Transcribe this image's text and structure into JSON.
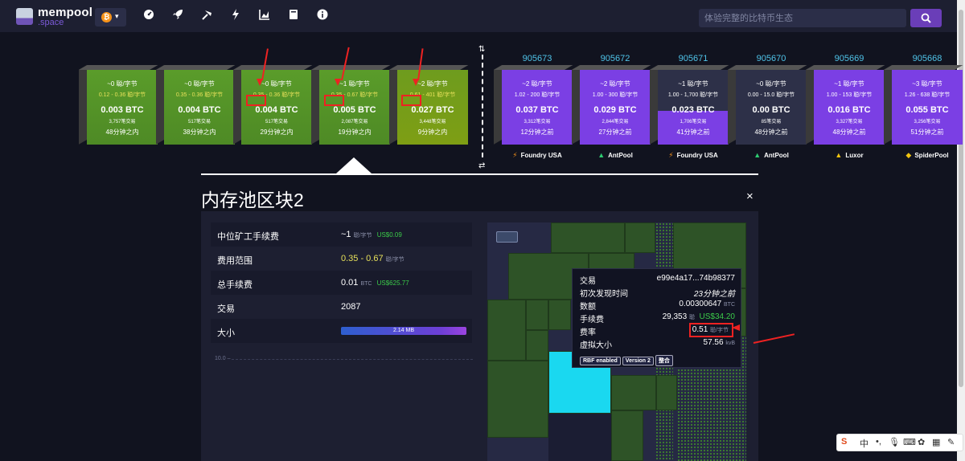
{
  "header": {
    "logo_line1": "mempool",
    "logo_line2": ".space",
    "network_coin": "₿",
    "search_placeholder": "体验完整的比特币生态"
  },
  "nav_icons": [
    "dashboard-icon",
    "rocket-icon",
    "mining-icon",
    "lightning-icon",
    "graphs-icon",
    "docs-icon",
    "about-icon"
  ],
  "mempool_blocks": [
    {
      "fee": "~0 聪/字节",
      "range": "0.12 - 0.36 聪/字节",
      "btc": "0.003 BTC",
      "tx": "3,757笔交易",
      "time": "48分钟之内"
    },
    {
      "fee": "~0 聪/字节",
      "range": "0.35 - 0.36 聪/字节",
      "btc": "0.004 BTC",
      "tx": "517笔交易",
      "time": "38分钟之内"
    },
    {
      "fee": "~0 聪/字节",
      "range": "0.35 - 0.36 聪/字节",
      "btc": "0.004 BTC",
      "tx": "517笔交易",
      "time": "29分钟之内"
    },
    {
      "fee": "~1 聪/字节",
      "range": "0.35 - 0.67 聪/字节",
      "btc": "0.005 BTC",
      "tx": "2,087笔交易",
      "time": "19分钟之内"
    },
    {
      "fee": "~2 聪/字节",
      "range": "0.61 - 401 聪/字节",
      "btc": "0.027 BTC",
      "tx": "3,448笔交易",
      "time": "9分钟之内"
    }
  ],
  "mined_blocks": [
    {
      "height": "905673",
      "fee": "~2 聪/字节",
      "range": "1.02 - 200 聪/字节",
      "btc": "0.037 BTC",
      "tx": "3,312笔交易",
      "time": "12分钟之前",
      "pool": "Foundry USA",
      "fill": 1.0
    },
    {
      "height": "905672",
      "fee": "~2 聪/字节",
      "range": "1.00 - 300 聪/字节",
      "btc": "0.029 BTC",
      "tx": "2,844笔交易",
      "time": "27分钟之前",
      "pool": "AntPool",
      "fill": 1.0
    },
    {
      "height": "905671",
      "fee": "~1 聪/字节",
      "range": "1.00 - 1,700 聪/字节",
      "btc": "0.023 BTC",
      "tx": "1,706笔交易",
      "time": "41分钟之前",
      "pool": "Foundry USA",
      "fill": 0.45
    },
    {
      "height": "905670",
      "fee": "~0 聪/字节",
      "range": "0.00 - 15.0 聪/字节",
      "btc": "0.00 BTC",
      "tx": "85笔交易",
      "time": "48分钟之前",
      "pool": "AntPool",
      "fill": 0.0
    },
    {
      "height": "905669",
      "fee": "~1 聪/字节",
      "range": "1.00 - 153 聪/字节",
      "btc": "0.016 BTC",
      "tx": "3,327笔交易",
      "time": "48分钟之前",
      "pool": "Luxor",
      "fill": 1.0
    },
    {
      "height": "905668",
      "fee": "~3 聪/字节",
      "range": "1.26 - 638 聪/字节",
      "btc": "0.055 BTC",
      "tx": "3,256笔交易",
      "time": "51分钟之前",
      "pool": "SpiderPool",
      "fill": 1.0
    }
  ],
  "panel": {
    "title": "内存池区块2",
    "close": "×",
    "rows": {
      "median_label": "中位矿工手续费",
      "median_value": "~1",
      "median_unit": "聪/字节",
      "median_usd": "US$0.09",
      "range_label": "费用范围",
      "range_value": "0.35 - 0.67",
      "range_unit": "聪/字节",
      "total_label": "总手续费",
      "total_value": "0.01",
      "total_unit": "BTC",
      "total_usd": "US$625.77",
      "tx_label": "交易",
      "tx_value": "2087",
      "size_label": "大小",
      "size_value": "2.14 MB",
      "size_fill": 1.0
    },
    "axis_label": "10.0 –"
  },
  "tooltip": {
    "tx_label": "交易",
    "tx_value": "e99e4a17...74b98377",
    "first_seen_label": "初次发现时间",
    "first_seen_value": "23分钟之前",
    "amount_label": "数额",
    "amount_value": "0.00300647",
    "amount_unit": "BTC",
    "fee_label": "手续费",
    "fee_value": "29,353",
    "fee_unit": "聪",
    "fee_usd": "US$34.20",
    "rate_label": "费率",
    "rate_value": "0.51",
    "rate_unit": "聪/字节",
    "vsize_label": "虚拟大小",
    "vsize_value": "57.56",
    "vsize_unit": "kvB",
    "tags": [
      "RBF enabled",
      "Version 2",
      "整合"
    ]
  },
  "ime": {
    "s": "S",
    "zh": "中"
  },
  "colors": {
    "background": "#11131f",
    "header": "#1d1f31",
    "accent": "#6a3eb8",
    "link": "#4fc3e8",
    "usd_green": "#3bcc49",
    "fee_yellow": "#e6e05a",
    "annotation_red": "#e22222"
  }
}
